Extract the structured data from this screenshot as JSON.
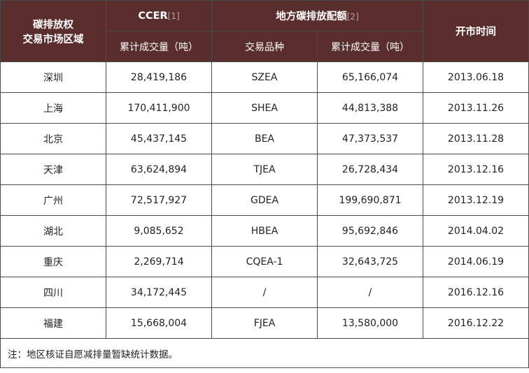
{
  "header": {
    "region_line1": "碳排放权",
    "region_line2": "交易市场区域",
    "ccer": "CCER",
    "ccer_ref": "[1]",
    "local": "地方碳排放配额",
    "local_ref": "[2]",
    "open_time": "开市时间",
    "ccer_volume": "累计成交量（吨）",
    "product": "交易品种",
    "local_volume": "累计成交量（吨）"
  },
  "rows": [
    {
      "region": "深圳",
      "ccer_volume": "28,419,186",
      "product": "SZEA",
      "local_volume": "65,166,074",
      "open_date": "2013.06.18"
    },
    {
      "region": "上海",
      "ccer_volume": "170,411,900",
      "product": "SHEA",
      "local_volume": "44,813,388",
      "open_date": "2013.11.26"
    },
    {
      "region": "北京",
      "ccer_volume": "45,437,145",
      "product": "BEA",
      "local_volume": "47,373,537",
      "open_date": "2013.11.28"
    },
    {
      "region": "天津",
      "ccer_volume": "63,624,894",
      "product": "TJEA",
      "local_volume": "26,728,434",
      "open_date": "2013.12.16"
    },
    {
      "region": "广州",
      "ccer_volume": "72,517,927",
      "product": "GDEA",
      "local_volume": "199,690,871",
      "open_date": "2013.12.19"
    },
    {
      "region": "湖北",
      "ccer_volume": "9,085,652",
      "product": "HBEA",
      "local_volume": "95,692,846",
      "open_date": "2014.04.02"
    },
    {
      "region": "重庆",
      "ccer_volume": "2,269,714",
      "product": "CQEA-1",
      "local_volume": "32,643,725",
      "open_date": "2014.06.19"
    },
    {
      "region": "四川",
      "ccer_volume": "34,172,445",
      "product": "/",
      "local_volume": "/",
      "open_date": "2016.12.16"
    },
    {
      "region": "福建",
      "ccer_volume": "15,668,004",
      "product": "FJEA",
      "local_volume": "13,580,000",
      "open_date": "2016.12.22"
    }
  ],
  "note": "注：地区核证自愿减排量暂缺统计数据。",
  "colors": {
    "header_bg": "#5b2e2e",
    "header_text": "#ffffff",
    "border": "#4a4a4a"
  }
}
